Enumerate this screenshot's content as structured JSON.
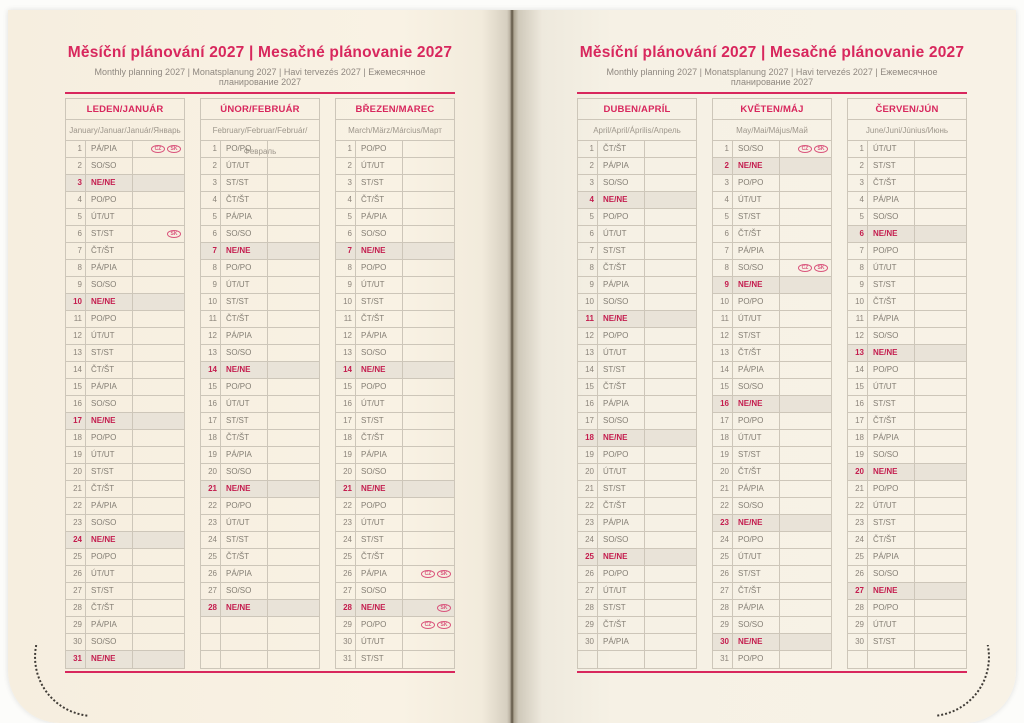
{
  "titles": {
    "main": "Měsíční plánování 2027 | Mesačné plánovanie 2027",
    "sub": "Monthly planning 2027 | Monatsplanung 2027 | Havi tervezés 2027 | Ежемесячное планирование 2027"
  },
  "colors": {
    "accent_pink": "#d8275d",
    "sunday_red": "#c41d4e",
    "sunday_row_bg": "#e9e3d8",
    "grid_border": "#cdc6b9",
    "page_cream": "#f8f1e3",
    "text_gray": "#837d73"
  },
  "badge_labels": {
    "cz": "CZ",
    "sk": "SK"
  },
  "day_names": [
    "PO/PO",
    "ÚT/UT",
    "ST/ST",
    "ČT/ŠT",
    "PÁ/PIA",
    "SO/SO",
    "NE/NE"
  ],
  "months": [
    {
      "header": "LEDEN/JANUÁR",
      "subtitle": "January/Januar/Január/Январь",
      "rows": [
        [
          1,
          "PÁ/PIA",
          0,
          [
            "CZ",
            "SK"
          ]
        ],
        [
          2,
          "SO/SO",
          0
        ],
        [
          3,
          "NE/NE",
          1
        ],
        [
          4,
          "PO/PO",
          0
        ],
        [
          5,
          "ÚT/UT",
          0
        ],
        [
          6,
          "ST/ST",
          0,
          [
            "SK"
          ]
        ],
        [
          7,
          "ČT/ŠT",
          0
        ],
        [
          8,
          "PÁ/PIA",
          0
        ],
        [
          9,
          "SO/SO",
          0
        ],
        [
          10,
          "NE/NE",
          1
        ],
        [
          11,
          "PO/PO",
          0
        ],
        [
          12,
          "ÚT/UT",
          0
        ],
        [
          13,
          "ST/ST",
          0
        ],
        [
          14,
          "ČT/ŠT",
          0
        ],
        [
          15,
          "PÁ/PIA",
          0
        ],
        [
          16,
          "SO/SO",
          0
        ],
        [
          17,
          "NE/NE",
          1
        ],
        [
          18,
          "PO/PO",
          0
        ],
        [
          19,
          "ÚT/UT",
          0
        ],
        [
          20,
          "ST/ST",
          0
        ],
        [
          21,
          "ČT/ŠT",
          0
        ],
        [
          22,
          "PÁ/PIA",
          0
        ],
        [
          23,
          "SO/SO",
          0
        ],
        [
          24,
          "NE/NE",
          1
        ],
        [
          25,
          "PO/PO",
          0
        ],
        [
          26,
          "ÚT/UT",
          0
        ],
        [
          27,
          "ST/ST",
          0
        ],
        [
          28,
          "ČT/ŠT",
          0
        ],
        [
          29,
          "PÁ/PIA",
          0
        ],
        [
          30,
          "SO/SO",
          0
        ],
        [
          31,
          "NE/NE",
          1
        ]
      ]
    },
    {
      "header": "ÚNOR/FEBRUÁR",
      "subtitle": "February/Februar/Február/Февраль",
      "rows": [
        [
          1,
          "PO/PO",
          0
        ],
        [
          2,
          "ÚT/UT",
          0
        ],
        [
          3,
          "ST/ST",
          0
        ],
        [
          4,
          "ČT/ŠT",
          0
        ],
        [
          5,
          "PÁ/PIA",
          0
        ],
        [
          6,
          "SO/SO",
          0
        ],
        [
          7,
          "NE/NE",
          1
        ],
        [
          8,
          "PO/PO",
          0
        ],
        [
          9,
          "ÚT/UT",
          0
        ],
        [
          10,
          "ST/ST",
          0
        ],
        [
          11,
          "ČT/ŠT",
          0
        ],
        [
          12,
          "PÁ/PIA",
          0
        ],
        [
          13,
          "SO/SO",
          0
        ],
        [
          14,
          "NE/NE",
          1
        ],
        [
          15,
          "PO/PO",
          0
        ],
        [
          16,
          "ÚT/UT",
          0
        ],
        [
          17,
          "ST/ST",
          0
        ],
        [
          18,
          "ČT/ŠT",
          0
        ],
        [
          19,
          "PÁ/PIA",
          0
        ],
        [
          20,
          "SO/SO",
          0
        ],
        [
          21,
          "NE/NE",
          1
        ],
        [
          22,
          "PO/PO",
          0
        ],
        [
          23,
          "ÚT/UT",
          0
        ],
        [
          24,
          "ST/ST",
          0
        ],
        [
          25,
          "ČT/ŠT",
          0
        ],
        [
          26,
          "PÁ/PIA",
          0
        ],
        [
          27,
          "SO/SO",
          0
        ],
        [
          28,
          "NE/NE",
          1
        ],
        [
          "",
          "",
          0
        ],
        [
          "",
          "",
          0
        ],
        [
          "",
          "",
          0
        ]
      ]
    },
    {
      "header": "BŘEZEN/MAREC",
      "subtitle": "March/März/Március/Март",
      "rows": [
        [
          1,
          "PO/PO",
          0
        ],
        [
          2,
          "ÚT/UT",
          0
        ],
        [
          3,
          "ST/ST",
          0
        ],
        [
          4,
          "ČT/ŠT",
          0
        ],
        [
          5,
          "PÁ/PIA",
          0
        ],
        [
          6,
          "SO/SO",
          0
        ],
        [
          7,
          "NE/NE",
          1
        ],
        [
          8,
          "PO/PO",
          0
        ],
        [
          9,
          "ÚT/UT",
          0
        ],
        [
          10,
          "ST/ST",
          0
        ],
        [
          11,
          "ČT/ŠT",
          0
        ],
        [
          12,
          "PÁ/PIA",
          0
        ],
        [
          13,
          "SO/SO",
          0
        ],
        [
          14,
          "NE/NE",
          1
        ],
        [
          15,
          "PO/PO",
          0
        ],
        [
          16,
          "ÚT/UT",
          0
        ],
        [
          17,
          "ST/ST",
          0
        ],
        [
          18,
          "ČT/ŠT",
          0
        ],
        [
          19,
          "PÁ/PIA",
          0
        ],
        [
          20,
          "SO/SO",
          0
        ],
        [
          21,
          "NE/NE",
          1
        ],
        [
          22,
          "PO/PO",
          0
        ],
        [
          23,
          "ÚT/UT",
          0
        ],
        [
          24,
          "ST/ST",
          0
        ],
        [
          25,
          "ČT/ŠT",
          0
        ],
        [
          26,
          "PÁ/PIA",
          0,
          [
            "CZ",
            "SK"
          ]
        ],
        [
          27,
          "SO/SO",
          0
        ],
        [
          28,
          "NE/NE",
          1,
          [
            "SK"
          ]
        ],
        [
          29,
          "PO/PO",
          0,
          [
            "CZ",
            "SK"
          ]
        ],
        [
          30,
          "ÚT/UT",
          0
        ],
        [
          31,
          "ST/ST",
          0
        ]
      ]
    },
    {
      "header": "DUBEN/APRÍL",
      "subtitle": "April/April/Április/Апрель",
      "rows": [
        [
          1,
          "ČT/ŠT",
          0
        ],
        [
          2,
          "PÁ/PIA",
          0
        ],
        [
          3,
          "SO/SO",
          0
        ],
        [
          4,
          "NE/NE",
          1
        ],
        [
          5,
          "PO/PO",
          0
        ],
        [
          6,
          "ÚT/UT",
          0
        ],
        [
          7,
          "ST/ST",
          0
        ],
        [
          8,
          "ČT/ŠT",
          0
        ],
        [
          9,
          "PÁ/PIA",
          0
        ],
        [
          10,
          "SO/SO",
          0
        ],
        [
          11,
          "NE/NE",
          1
        ],
        [
          12,
          "PO/PO",
          0
        ],
        [
          13,
          "ÚT/UT",
          0
        ],
        [
          14,
          "ST/ST",
          0
        ],
        [
          15,
          "ČT/ŠT",
          0
        ],
        [
          16,
          "PÁ/PIA",
          0
        ],
        [
          17,
          "SO/SO",
          0
        ],
        [
          18,
          "NE/NE",
          1
        ],
        [
          19,
          "PO/PO",
          0
        ],
        [
          20,
          "ÚT/UT",
          0
        ],
        [
          21,
          "ST/ST",
          0
        ],
        [
          22,
          "ČT/ŠT",
          0
        ],
        [
          23,
          "PÁ/PIA",
          0
        ],
        [
          24,
          "SO/SO",
          0
        ],
        [
          25,
          "NE/NE",
          1
        ],
        [
          26,
          "PO/PO",
          0
        ],
        [
          27,
          "ÚT/UT",
          0
        ],
        [
          28,
          "ST/ST",
          0
        ],
        [
          29,
          "ČT/ŠT",
          0
        ],
        [
          30,
          "PÁ/PIA",
          0
        ],
        [
          "",
          "",
          0
        ]
      ]
    },
    {
      "header": "KVĚTEN/MÁJ",
      "subtitle": "May/Mai/Május/Май",
      "rows": [
        [
          1,
          "SO/SO",
          0,
          [
            "CZ",
            "SK"
          ]
        ],
        [
          2,
          "NE/NE",
          1
        ],
        [
          3,
          "PO/PO",
          0
        ],
        [
          4,
          "ÚT/UT",
          0
        ],
        [
          5,
          "ST/ST",
          0
        ],
        [
          6,
          "ČT/ŠT",
          0
        ],
        [
          7,
          "PÁ/PIA",
          0
        ],
        [
          8,
          "SO/SO",
          0,
          [
            "CZ",
            "SK"
          ]
        ],
        [
          9,
          "NE/NE",
          1
        ],
        [
          10,
          "PO/PO",
          0
        ],
        [
          11,
          "ÚT/UT",
          0
        ],
        [
          12,
          "ST/ST",
          0
        ],
        [
          13,
          "ČT/ŠT",
          0
        ],
        [
          14,
          "PÁ/PIA",
          0
        ],
        [
          15,
          "SO/SO",
          0
        ],
        [
          16,
          "NE/NE",
          1
        ],
        [
          17,
          "PO/PO",
          0
        ],
        [
          18,
          "ÚT/UT",
          0
        ],
        [
          19,
          "ST/ST",
          0
        ],
        [
          20,
          "ČT/ŠT",
          0
        ],
        [
          21,
          "PÁ/PIA",
          0
        ],
        [
          22,
          "SO/SO",
          0
        ],
        [
          23,
          "NE/NE",
          1
        ],
        [
          24,
          "PO/PO",
          0
        ],
        [
          25,
          "ÚT/UT",
          0
        ],
        [
          26,
          "ST/ST",
          0
        ],
        [
          27,
          "ČT/ŠT",
          0
        ],
        [
          28,
          "PÁ/PIA",
          0
        ],
        [
          29,
          "SO/SO",
          0
        ],
        [
          30,
          "NE/NE",
          1
        ],
        [
          31,
          "PO/PO",
          0
        ]
      ]
    },
    {
      "header": "ČERVEN/JÚN",
      "subtitle": "June/Juni/Június/Июнь",
      "rows": [
        [
          1,
          "ÚT/UT",
          0
        ],
        [
          2,
          "ST/ST",
          0
        ],
        [
          3,
          "ČT/ŠT",
          0
        ],
        [
          4,
          "PÁ/PIA",
          0
        ],
        [
          5,
          "SO/SO",
          0
        ],
        [
          6,
          "NE/NE",
          1
        ],
        [
          7,
          "PO/PO",
          0
        ],
        [
          8,
          "ÚT/UT",
          0
        ],
        [
          9,
          "ST/ST",
          0
        ],
        [
          10,
          "ČT/ŠT",
          0
        ],
        [
          11,
          "PÁ/PIA",
          0
        ],
        [
          12,
          "SO/SO",
          0
        ],
        [
          13,
          "NE/NE",
          1
        ],
        [
          14,
          "PO/PO",
          0
        ],
        [
          15,
          "ÚT/UT",
          0
        ],
        [
          16,
          "ST/ST",
          0
        ],
        [
          17,
          "ČT/ŠT",
          0
        ],
        [
          18,
          "PÁ/PIA",
          0
        ],
        [
          19,
          "SO/SO",
          0
        ],
        [
          20,
          "NE/NE",
          1
        ],
        [
          21,
          "PO/PO",
          0
        ],
        [
          22,
          "ÚT/UT",
          0
        ],
        [
          23,
          "ST/ST",
          0
        ],
        [
          24,
          "ČT/ŠT",
          0
        ],
        [
          25,
          "PÁ/PIA",
          0
        ],
        [
          26,
          "SO/SO",
          0
        ],
        [
          27,
          "NE/NE",
          1
        ],
        [
          28,
          "PO/PO",
          0
        ],
        [
          29,
          "ÚT/UT",
          0
        ],
        [
          30,
          "ST/ST",
          0
        ],
        [
          "",
          "",
          0
        ]
      ]
    }
  ]
}
